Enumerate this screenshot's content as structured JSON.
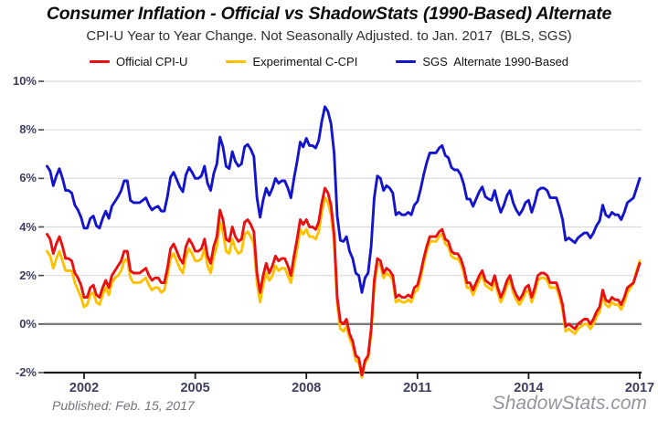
{
  "chart_meta": {
    "title": "Consumer Inflation - Official vs ShadowStats (1990-Based) Alternate",
    "subtitle": "CPI-U Year to Year Change. Not Seasonally Adjusted. to Jan. 2017  (BLS, SGS)"
  },
  "footer": {
    "published": "Published: Feb. 15, 2017",
    "watermark": "ShadowStats.com"
  },
  "chart_data": {
    "type": "line",
    "title": "Consumer Inflation - Official vs ShadowStats (1990-Based) Alternate",
    "subtitle": "CPI-U Year to Year Change. Not Seasonally Adjusted. to Jan. 2017  (BLS, SGS)",
    "xlabel": "",
    "ylabel": "",
    "x_start_year": 2001,
    "x_end_year": 2017,
    "x_frequency": "monthly",
    "x_last_point": "Jan. 2017",
    "ylim": [
      -2,
      10
    ],
    "yticks": [
      -2,
      0,
      2,
      4,
      6,
      8,
      10
    ],
    "ytick_labels": [
      "-2%",
      "0%",
      "2%",
      "4%",
      "6%",
      "8%",
      "10%"
    ],
    "xticks": [
      2002,
      2005,
      2008,
      2011,
      2014,
      2017
    ],
    "xtick_labels": [
      "2002",
      "2005",
      "2008",
      "2011",
      "2014",
      "2017"
    ],
    "grid": "horizontal",
    "legend_position": "top",
    "zero_line_color": "#7b7b7b",
    "grid_color": "#d9d9d9",
    "axis_color": "#1a1a1a",
    "tick_label_color": "#3d3d5f",
    "series": [
      {
        "name": "Official CPI-U",
        "color": "#e81010",
        "values": [
          3.7,
          3.5,
          2.9,
          3.3,
          3.6,
          3.2,
          2.7,
          2.7,
          2.6,
          2.1,
          1.9,
          1.6,
          1.1,
          1.1,
          1.5,
          1.6,
          1.2,
          1.1,
          1.5,
          1.8,
          1.5,
          2.0,
          2.2,
          2.4,
          2.6,
          3.0,
          3.0,
          2.2,
          2.1,
          2.1,
          2.1,
          2.2,
          2.3,
          2.0,
          1.8,
          1.9,
          1.9,
          1.7,
          1.7,
          2.3,
          3.1,
          3.3,
          3.0,
          2.7,
          2.5,
          3.2,
          3.5,
          3.3,
          3.0,
          3.0,
          3.1,
          3.5,
          2.8,
          2.5,
          3.2,
          3.6,
          4.7,
          4.3,
          3.5,
          3.4,
          4.0,
          3.6,
          3.4,
          3.5,
          4.2,
          4.3,
          4.1,
          3.8,
          2.1,
          1.3,
          2.0,
          2.5,
          2.1,
          2.4,
          2.8,
          2.6,
          2.7,
          2.7,
          2.4,
          2.0,
          2.8,
          3.5,
          4.3,
          4.1,
          4.3,
          4.0,
          4.0,
          3.9,
          4.2,
          5.0,
          5.6,
          5.4,
          4.9,
          3.7,
          1.1,
          0.1,
          0.0,
          0.2,
          -0.4,
          -0.7,
          -1.3,
          -1.4,
          -2.1,
          -1.5,
          -1.3,
          -0.2,
          1.8,
          2.7,
          2.6,
          2.1,
          2.3,
          2.2,
          2.0,
          1.1,
          1.2,
          1.1,
          1.1,
          1.2,
          1.1,
          1.5,
          1.6,
          2.1,
          2.7,
          3.2,
          3.6,
          3.6,
          3.6,
          3.8,
          3.9,
          3.5,
          3.4,
          3.0,
          2.9,
          2.9,
          2.7,
          2.3,
          1.7,
          1.7,
          1.4,
          1.7,
          2.0,
          2.2,
          1.8,
          1.7,
          1.6,
          2.0,
          1.5,
          1.1,
          1.4,
          1.8,
          2.0,
          1.5,
          1.2,
          1.0,
          1.2,
          1.5,
          1.6,
          1.1,
          1.5,
          2.0,
          2.1,
          2.1,
          2.0,
          1.7,
          1.7,
          1.7,
          1.3,
          0.8,
          -0.1,
          0.0,
          -0.1,
          -0.2,
          0.0,
          0.1,
          0.2,
          0.2,
          0.0,
          0.2,
          0.5,
          0.7,
          1.4,
          1.0,
          0.9,
          1.1,
          1.0,
          1.0,
          0.8,
          1.1,
          1.5,
          1.6,
          1.7,
          2.1,
          2.5
        ]
      },
      {
        "name": "Experimental C-CPI",
        "color": "#ffc200",
        "values": [
          3.0,
          2.8,
          2.3,
          2.7,
          3.0,
          2.6,
          2.2,
          2.2,
          2.2,
          1.7,
          1.4,
          1.1,
          0.7,
          0.8,
          1.2,
          1.3,
          0.9,
          0.8,
          1.2,
          1.5,
          1.2,
          1.7,
          1.9,
          2.0,
          2.2,
          2.6,
          2.7,
          1.9,
          1.7,
          1.7,
          1.7,
          1.8,
          1.9,
          1.6,
          1.4,
          1.5,
          1.5,
          1.3,
          1.4,
          2.0,
          2.7,
          2.9,
          2.6,
          2.3,
          2.1,
          2.8,
          3.1,
          2.9,
          2.6,
          2.6,
          2.7,
          3.1,
          2.4,
          2.1,
          2.8,
          3.2,
          4.2,
          3.8,
          3.0,
          2.9,
          3.5,
          3.1,
          2.9,
          3.0,
          3.7,
          3.8,
          3.6,
          3.3,
          1.7,
          0.9,
          1.6,
          2.1,
          1.8,
          2.0,
          2.4,
          2.2,
          2.3,
          2.3,
          2.0,
          1.7,
          2.4,
          3.1,
          3.9,
          3.7,
          3.9,
          3.6,
          3.6,
          3.5,
          3.8,
          4.6,
          5.2,
          5.0,
          4.5,
          3.4,
          0.8,
          -0.2,
          -0.3,
          -0.1,
          -0.6,
          -0.9,
          -1.5,
          -1.6,
          -2.2,
          -1.6,
          -1.4,
          -0.4,
          1.5,
          2.5,
          2.4,
          1.9,
          2.1,
          2.0,
          1.8,
          0.9,
          1.0,
          0.9,
          0.9,
          1.0,
          0.9,
          1.3,
          1.4,
          1.9,
          2.5,
          3.0,
          3.4,
          3.4,
          3.4,
          3.6,
          3.7,
          3.3,
          3.2,
          2.8,
          2.7,
          2.7,
          2.5,
          2.1,
          1.5,
          1.5,
          1.2,
          1.5,
          1.8,
          2.0,
          1.6,
          1.5,
          1.4,
          1.8,
          1.3,
          0.9,
          1.2,
          1.6,
          1.8,
          1.3,
          1.0,
          0.8,
          1.0,
          1.3,
          1.4,
          0.9,
          1.3,
          1.8,
          1.9,
          1.9,
          1.8,
          1.5,
          1.5,
          1.5,
          1.1,
          0.6,
          -0.3,
          -0.2,
          -0.3,
          -0.4,
          -0.2,
          -0.1,
          0.0,
          0.0,
          -0.2,
          0.0,
          0.3,
          0.5,
          1.2,
          0.8,
          0.7,
          0.9,
          0.8,
          0.8,
          0.6,
          0.9,
          1.3,
          1.5,
          1.7,
          2.2,
          2.6
        ]
      },
      {
        "name": "SGS  Alternate 1990-Based",
        "color": "#1414cc",
        "values": [
          6.5,
          6.3,
          5.7,
          6.1,
          6.4,
          6.0,
          5.5,
          5.5,
          5.4,
          4.9,
          4.7,
          4.4,
          3.95,
          3.95,
          4.35,
          4.45,
          4.05,
          3.95,
          4.35,
          4.65,
          4.35,
          4.85,
          5.05,
          5.25,
          5.5,
          5.9,
          5.9,
          5.1,
          5.0,
          5.0,
          5.0,
          5.1,
          5.2,
          4.9,
          4.7,
          4.8,
          4.85,
          4.65,
          4.65,
          5.25,
          6.05,
          6.25,
          5.95,
          5.65,
          5.45,
          6.15,
          6.45,
          6.25,
          6.0,
          6.0,
          6.1,
          6.5,
          5.8,
          5.5,
          6.2,
          6.6,
          7.7,
          7.3,
          6.5,
          6.4,
          7.1,
          6.7,
          6.5,
          6.6,
          7.3,
          7.4,
          7.2,
          6.9,
          5.2,
          4.4,
          5.1,
          5.6,
          5.3,
          5.6,
          6.0,
          5.8,
          5.9,
          5.9,
          5.6,
          5.2,
          6.0,
          6.7,
          7.5,
          7.3,
          7.65,
          7.35,
          7.35,
          7.25,
          7.55,
          8.35,
          8.95,
          8.75,
          8.25,
          7.05,
          4.45,
          3.45,
          3.4,
          3.6,
          3.0,
          2.7,
          2.1,
          2.0,
          1.3,
          1.9,
          2.1,
          3.2,
          5.2,
          6.1,
          6.0,
          5.5,
          5.7,
          5.6,
          5.4,
          4.5,
          4.6,
          4.5,
          4.5,
          4.6,
          4.5,
          4.9,
          5.05,
          5.55,
          6.15,
          6.65,
          7.05,
          7.05,
          7.05,
          7.25,
          7.35,
          6.95,
          6.85,
          6.45,
          6.35,
          6.35,
          6.15,
          5.75,
          5.15,
          5.15,
          4.85,
          5.15,
          5.45,
          5.65,
          5.25,
          5.15,
          5.1,
          5.5,
          5.0,
          4.6,
          4.9,
          5.3,
          5.5,
          5.0,
          4.7,
          4.5,
          4.7,
          5.0,
          5.1,
          4.6,
          5.0,
          5.5,
          5.6,
          5.6,
          5.5,
          5.2,
          5.2,
          5.2,
          4.8,
          4.3,
          3.45,
          3.55,
          3.45,
          3.35,
          3.55,
          3.65,
          3.75,
          3.75,
          3.55,
          3.75,
          4.05,
          4.25,
          4.9,
          4.5,
          4.4,
          4.6,
          4.5,
          4.5,
          4.3,
          4.6,
          5.0,
          5.1,
          5.2,
          5.6,
          6.0
        ]
      }
    ]
  }
}
